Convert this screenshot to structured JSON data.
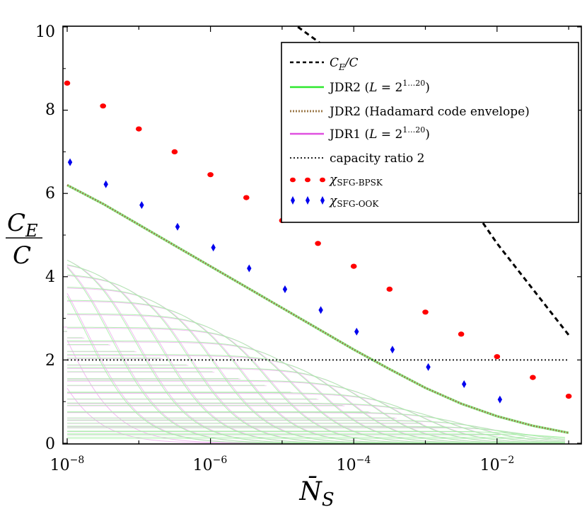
{
  "chart_data": {
    "type": "line",
    "xscale": "log10",
    "xlim_log10": [
      -8,
      -1
    ],
    "ylim": [
      0,
      10
    ],
    "xlabel": {
      "main": "N̄",
      "sub": "S"
    },
    "ylabel": {
      "num_main": "C",
      "num_sub": "E",
      "den": "C"
    },
    "xticks": [
      {
        "base": "10",
        "exp": "−8",
        "log10": -8
      },
      {
        "base": "10",
        "exp": "−6",
        "log10": -6
      },
      {
        "base": "10",
        "exp": "−4",
        "log10": -4
      },
      {
        "base": "10",
        "exp": "−2",
        "log10": -2
      }
    ],
    "yticks": [
      "0",
      "2",
      "4",
      "6",
      "8",
      "10"
    ],
    "colors": {
      "ce_over_c": "#000000",
      "jdr2": "#2ee82e",
      "jdr2_faint": "#a6f0a6",
      "hadamard": "#9c7a4a",
      "jdr1": "#e050e0",
      "jdr1_faint": "#edb0ed",
      "capacity": "#222222",
      "bpsk": "#ff0000",
      "ook": "#0000ee"
    },
    "legend": {
      "position": "top-right",
      "items": [
        {
          "id": "ce",
          "main": "C",
          "sub": "E",
          "rest": "/C"
        },
        {
          "id": "jdr2",
          "text": "JDR2 (",
          "italic": "L",
          "eq": " = 2",
          "sup": "1…20",
          "close": ")"
        },
        {
          "id": "hadamard",
          "text": "JDR2 (Hadamard code envelope)"
        },
        {
          "id": "jdr1",
          "text": "JDR1 (",
          "italic": "L",
          "eq": " = 2",
          "sup": "1…20",
          "close": ")"
        },
        {
          "id": "capacity",
          "text": "capacity ratio 2"
        },
        {
          "id": "bpsk",
          "main": "χ",
          "sub": "SFG-BPSK"
        },
        {
          "id": "ook",
          "main": "χ",
          "sub": "SFG-OOK"
        }
      ]
    },
    "series": [
      {
        "name": "C_E/C",
        "style": "dashed",
        "x_log10": [
          -4.78,
          -4.5,
          -4,
          -3.5,
          -3,
          -2.5,
          -2,
          -1.5,
          -1
        ],
        "y": [
          10.0,
          9.65,
          9.0,
          8.2,
          7.2,
          6.05,
          4.8,
          3.7,
          2.6
        ]
      },
      {
        "name": "JDR2 (Hadamard code envelope)",
        "style": "dotted",
        "x_log10": [
          -8,
          -7.5,
          -7,
          -6.5,
          -6,
          -5.5,
          -5,
          -4.5,
          -4,
          -3.5,
          -3,
          -2.5,
          -2,
          -1.5,
          -1
        ],
        "y": [
          6.2,
          5.75,
          5.25,
          4.75,
          4.25,
          3.75,
          3.25,
          2.75,
          2.25,
          1.78,
          1.33,
          0.95,
          0.65,
          0.42,
          0.25
        ]
      },
      {
        "name": "capacity ratio 2",
        "style": "dotted",
        "x_log10": [
          -8,
          -1
        ],
        "y": [
          2,
          2
        ]
      },
      {
        "name": "χSFG-BPSK",
        "style": "markers-circle",
        "x_log10": [
          -8,
          -7.5,
          -7,
          -6.5,
          -6,
          -5.5,
          -5,
          -4.5,
          -4,
          -3.5,
          -3,
          -2.5,
          -2,
          -1.5,
          -1
        ],
        "y": [
          8.65,
          8.1,
          7.55,
          7.0,
          6.45,
          5.9,
          5.35,
          4.8,
          4.25,
          3.7,
          3.15,
          2.62,
          2.08,
          1.58,
          1.13
        ]
      },
      {
        "name": "χSFG-OOK",
        "style": "markers-diamond",
        "x_log10": [
          -7.96,
          -7.46,
          -6.96,
          -6.46,
          -5.96,
          -5.46,
          -4.96,
          -4.46,
          -3.96,
          -3.46,
          -2.96,
          -2.46,
          -1.96
        ],
        "y": [
          6.75,
          6.22,
          5.72,
          5.2,
          4.7,
          4.2,
          3.7,
          3.2,
          2.68,
          2.25,
          1.83,
          1.42,
          1.05
        ]
      }
    ],
    "family_JDR2": {
      "count": 20,
      "levels_log2": [
        1,
        20
      ],
      "env_drop_at_x_log10": -7.9
    },
    "family_JDR1": {
      "count": 20,
      "levels_log2": [
        1,
        20
      ],
      "env_drop_at_x_log10": -7.9
    }
  }
}
